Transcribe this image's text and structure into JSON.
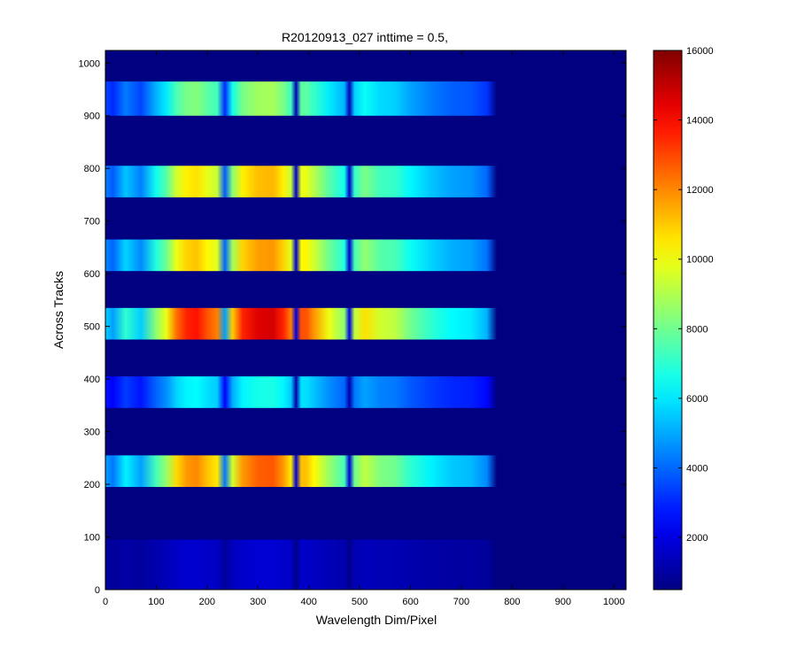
{
  "chart_data": {
    "type": "heatmap",
    "title": "R20120913_027 inttime = 0.5,",
    "xlabel": "Wavelength Dim/Pixel",
    "ylabel": "Across Tracks",
    "xlim": [
      0,
      1024
    ],
    "ylim": [
      0,
      1024
    ],
    "x_ticks": [
      0,
      100,
      200,
      300,
      400,
      500,
      600,
      700,
      800,
      900,
      1000
    ],
    "y_ticks": [
      0,
      100,
      200,
      300,
      400,
      500,
      600,
      700,
      800,
      900,
      1000
    ],
    "colorbar": {
      "colormap": "jet",
      "range": [
        500,
        16000
      ],
      "ticks": [
        2000,
        4000,
        6000,
        8000,
        10000,
        12000,
        14000,
        16000
      ]
    },
    "background_value": 500,
    "bands": [
      {
        "y_range": [
          0,
          95
        ],
        "peak": 1800
      },
      {
        "y_range": [
          195,
          255
        ],
        "peak": 13000
      },
      {
        "y_range": [
          345,
          405
        ],
        "peak": 6800
      },
      {
        "y_range": [
          475,
          535
        ],
        "peak": 15000
      },
      {
        "y_range": [
          605,
          665
        ],
        "peak": 12000
      },
      {
        "y_range": [
          745,
          805
        ],
        "peak": 11500
      },
      {
        "y_range": [
          900,
          965
        ],
        "peak": 9000
      }
    ],
    "spectrum_profile": {
      "x": [
        0,
        15,
        40,
        70,
        100,
        120,
        140,
        160,
        180,
        200,
        220,
        235,
        250,
        270,
        300,
        330,
        350,
        365,
        375,
        385,
        395,
        410,
        440,
        470,
        480,
        490,
        510,
        540,
        570,
        600,
        640,
        680,
        720,
        750,
        770
      ],
      "relative_intensity": [
        0.35,
        0.3,
        0.45,
        0.35,
        0.55,
        0.65,
        0.82,
        0.9,
        0.92,
        0.85,
        0.8,
        0.3,
        0.72,
        0.9,
        0.97,
        0.98,
        0.9,
        0.8,
        0.1,
        0.85,
        0.85,
        0.78,
        0.65,
        0.55,
        0.1,
        0.6,
        0.7,
        0.62,
        0.6,
        0.52,
        0.45,
        0.4,
        0.38,
        0.32,
        0.0
      ]
    }
  }
}
